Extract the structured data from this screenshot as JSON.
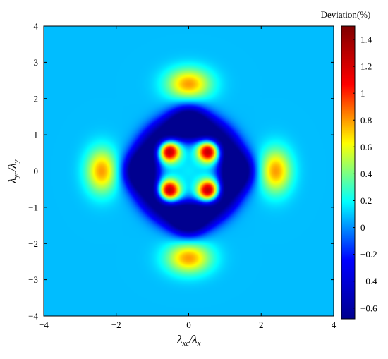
{
  "chart_data": {
    "type": "heatmap",
    "title": "",
    "xlabel": {
      "main": "λ",
      "sub": "xc",
      "sep": "/λ",
      "sub2": "x"
    },
    "ylabel": {
      "main": "λ",
      "sub": "yc",
      "sep": "/λ",
      "sub2": "y"
    },
    "xlim": [
      -4,
      4
    ],
    "ylim": [
      -4,
      4
    ],
    "x_ticks": [
      "−4",
      "−2",
      "0",
      "2",
      "4"
    ],
    "x_tick_values": [
      -4,
      -2,
      0,
      2,
      4
    ],
    "y_ticks": [
      "4",
      "3",
      "2",
      "1",
      "0",
      "−1",
      "−2",
      "−3",
      "−4"
    ],
    "y_tick_values": [
      4,
      3,
      2,
      1,
      0,
      -1,
      -2,
      -3,
      -4
    ],
    "colorbar": {
      "title": "Deviation(%)",
      "range": [
        -0.68,
        1.5
      ],
      "ticks": [
        "1.4",
        "1.2",
        "1",
        "0.8",
        "0.6",
        "0.4",
        "0.2",
        "0",
        "−0.2",
        "−0.4",
        "−0.6"
      ],
      "tick_values": [
        1.4,
        1.2,
        1.0,
        0.8,
        0.6,
        0.4,
        0.2,
        0.0,
        -0.2,
        -0.4,
        -0.6
      ],
      "colormap": "jet",
      "colors": [
        "#00008f",
        "#0000ff",
        "#00ffff",
        "#ffff00",
        "#ff0000",
        "#800000"
      ]
    },
    "background_value": 0.08,
    "features": [
      {
        "label": "central-trough",
        "x": 0,
        "y": 0,
        "value": 0.15
      },
      {
        "label": "inner-peak",
        "x": 0.55,
        "y": 0.55,
        "value": 1.45
      },
      {
        "label": "inner-peak",
        "x": -0.55,
        "y": 0.55,
        "value": 1.45
      },
      {
        "label": "inner-peak",
        "x": 0.55,
        "y": -0.55,
        "value": 1.45
      },
      {
        "label": "inner-peak",
        "x": -0.55,
        "y": -0.55,
        "value": 1.45
      },
      {
        "label": "ring-minimum",
        "x": 1.35,
        "y": 0,
        "value": -0.65
      },
      {
        "label": "ring-minimum",
        "x": -1.35,
        "y": 0,
        "value": -0.65
      },
      {
        "label": "ring-minimum",
        "x": 0,
        "y": 1.35,
        "value": -0.65
      },
      {
        "label": "ring-minimum",
        "x": 0,
        "y": -1.35,
        "value": -0.65
      },
      {
        "label": "outer-lobe",
        "x": 2.4,
        "y": 0,
        "value": 0.8
      },
      {
        "label": "outer-lobe",
        "x": -2.4,
        "y": 0,
        "value": 0.8
      },
      {
        "label": "outer-lobe",
        "x": 0,
        "y": 2.4,
        "value": 0.8
      },
      {
        "label": "outer-lobe",
        "x": 0,
        "y": -2.4,
        "value": 0.8
      }
    ]
  }
}
